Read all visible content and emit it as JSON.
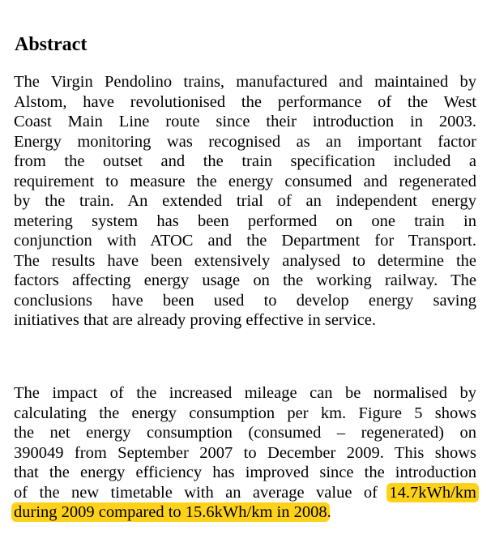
{
  "document": {
    "heading": "Abstract",
    "paragraph1_lines": [
      "The Virgin Pendolino trains, manufactured and maintained by",
      "Alstom, have revolutionised the performance of the West",
      "Coast Main Line route since their introduction in 2003.",
      "Energy monitoring was recognised as an important factor",
      "from the outset and the train specification included a",
      "requirement to measure the energy consumed and regenerated",
      "by the train. An extended trial of an independent energy",
      "metering system has been performed on one train in",
      "conjunction with ATOC and the Department for Transport.",
      "The results have been extensively analysed to determine the",
      "factors affecting energy usage on the working railway. The",
      "conclusions have been used to develop energy saving",
      "initiatives that are already proving effective in service."
    ],
    "paragraph2_lines": [
      "The impact of the increased mileage can be normalised by",
      "calculating the energy consumption per km. Figure 5 shows",
      "the net energy consumption (consumed – regenerated) on",
      "390049 from September 2007 to December 2009. This shows",
      "that the energy efficiency has improved since the introduction"
    ],
    "paragraph2_line6_plain": "of the new timetable with an average value of ",
    "paragraph2_line6_highlight": "14.7kWh/km",
    "paragraph2_line7_highlight": "during 2009 compared to 15.6kWh/km in 2008",
    "paragraph2_line7_tail": ".",
    "highlight_color": "#ffd21a"
  }
}
